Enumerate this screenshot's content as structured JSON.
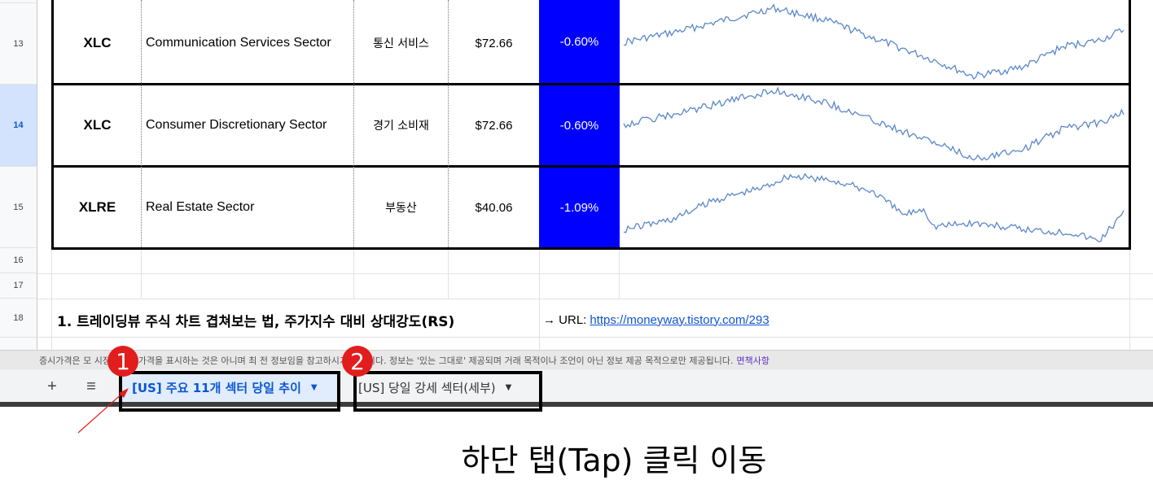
{
  "rows": [
    {
      "num": "13",
      "ticker": "XLC",
      "name": "Communication Services Sector",
      "kr": "통신 서비스",
      "price": "$72.66",
      "change": "-0.60%"
    },
    {
      "num": "14",
      "ticker": "XLC",
      "name": "Consumer Discretionary Sector",
      "kr": "경기 소비재",
      "price": "$72.66",
      "change": "-0.60%"
    },
    {
      "num": "15",
      "ticker": "XLRE",
      "name": "Real Estate Sector",
      "kr": "부동산",
      "price": "$40.06",
      "change": "-1.09%"
    }
  ],
  "empty_rows": [
    "16",
    "17"
  ],
  "row18": {
    "num": "18",
    "title": "1. 트레이딩뷰 주식 차트 겹쳐보는 법, 주가지수 대비 상대강도(RS)",
    "url_label": "→ URL:",
    "url": "https://moneyway.tistory.com/293"
  },
  "disclaimer": {
    "text": "증시가격은 모 시장의 증시가격을 표시하는 것은 아니며 최 전 정보임을 참고하시기 바랍니다. 정보는 '있는 그대로' 제공되며 거래 목적이나 조언이 아닌 정보 제공 목적으로만 제공됩니다.",
    "link": "면책사항"
  },
  "tabbar": {
    "add_icon": "+",
    "menu_icon": "≡",
    "tabs": [
      {
        "label": "[US] 주요 11개 섹터 당일 추이",
        "active": true
      },
      {
        "label": "[US] 당일 강세 섹터(세부)",
        "active": false
      }
    ]
  },
  "annotations": {
    "badge1": "1",
    "badge2": "2",
    "caption": "하단 탭(Tap) 클릭 이동"
  },
  "colors": {
    "change_bg": "#0000ff",
    "spark": "#5b87c9",
    "badge": "#e21d1d",
    "active_tab": "#0b57d0"
  }
}
